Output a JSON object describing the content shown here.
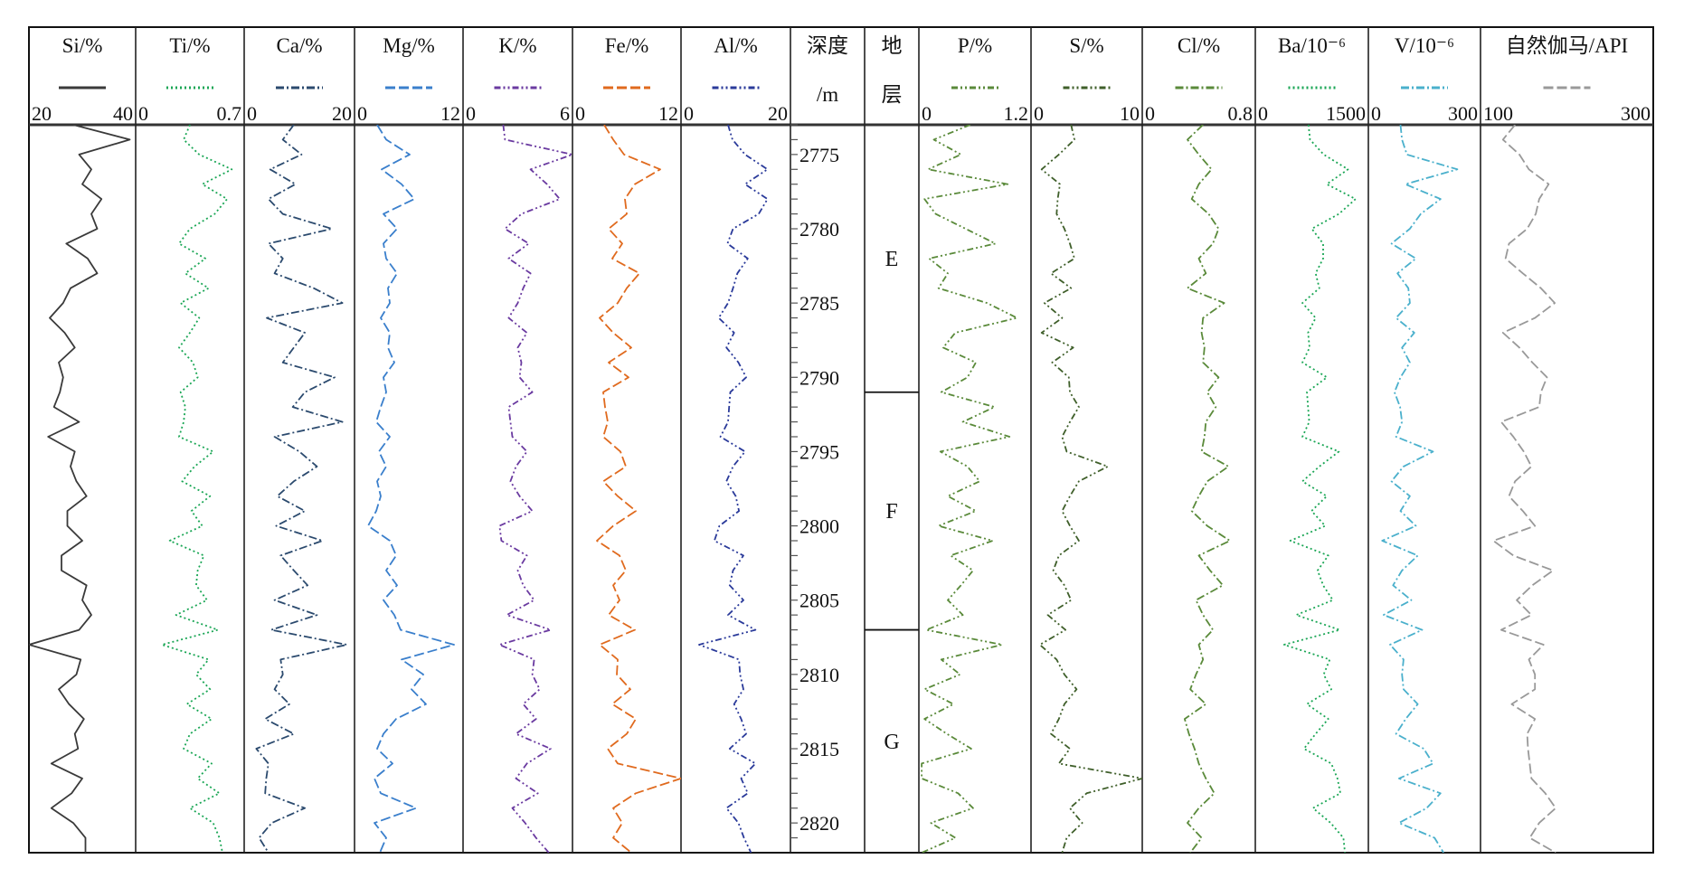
{
  "chart_data": {
    "type": "line",
    "orientation": "vertical-well-log",
    "depth_axis": {
      "title_line1": "深度",
      "title_line2": "/m",
      "range": [
        2773,
        2822
      ],
      "tick_labels": [
        "2775",
        "2780",
        "2785",
        "2790",
        "2795",
        "2800",
        "2805",
        "2810",
        "2815",
        "2820"
      ],
      "tick_values": [
        2775,
        2780,
        2785,
        2790,
        2795,
        2800,
        2805,
        2810,
        2815,
        2820
      ],
      "minor_tick_step": 1
    },
    "strata": {
      "title_line1": "地",
      "title_line2": "层",
      "units": [
        {
          "label": "E",
          "top": 2773,
          "bottom": 2791
        },
        {
          "label": "F",
          "top": 2791,
          "bottom": 2807
        },
        {
          "label": "G",
          "top": 2807,
          "bottom": 2822
        }
      ]
    },
    "depth": [
      2773,
      2774,
      2775,
      2776,
      2777,
      2778,
      2779,
      2780,
      2781,
      2782,
      2783,
      2784,
      2785,
      2786,
      2787,
      2788,
      2789,
      2790,
      2791,
      2792,
      2793,
      2794,
      2795,
      2796,
      2797,
      2798,
      2799,
      2800,
      2801,
      2802,
      2803,
      2804,
      2805,
      2806,
      2807,
      2808,
      2809,
      2810,
      2811,
      2812,
      2813,
      2814,
      2815,
      2816,
      2817,
      2818,
      2819,
      2820,
      2821,
      2822
    ],
    "tracks": [
      {
        "name": "Si/%",
        "min": 20,
        "max": 40,
        "min_label": "20",
        "max_label": "40",
        "color": "#3a3a3a",
        "style": "solid",
        "values": [
          28.3,
          38.9,
          29.4,
          31.7,
          30,
          33.6,
          31.7,
          32.8,
          27,
          31,
          32.8,
          27.8,
          26.4,
          23.9,
          26.7,
          28.6,
          25.6,
          26.4,
          25.8,
          24.7,
          29.4,
          23.6,
          28.6,
          27.8,
          28.9,
          30.8,
          27.2,
          27.2,
          30,
          26.1,
          26.1,
          30.8,
          30,
          31.7,
          29.4,
          20,
          29.7,
          28.9,
          25.6,
          27.5,
          30.3,
          28.6,
          29.2,
          24.2,
          30,
          28,
          24.2,
          28.3,
          30.6,
          30.6
        ]
      },
      {
        "name": "Ti/%",
        "min": 0,
        "max": 0.7,
        "min_label": "0",
        "max_label": "0.7",
        "color": "#1aa655",
        "style": "dotted",
        "values": [
          0.35,
          0.31,
          0.41,
          0.62,
          0.43,
          0.59,
          0.51,
          0.35,
          0.28,
          0.45,
          0.32,
          0.47,
          0.29,
          0.41,
          0.35,
          0.28,
          0.37,
          0.4,
          0.29,
          0.32,
          0.31,
          0.28,
          0.5,
          0.38,
          0.3,
          0.48,
          0.36,
          0.43,
          0.22,
          0.44,
          0.4,
          0.39,
          0.46,
          0.26,
          0.53,
          0.17,
          0.47,
          0.39,
          0.48,
          0.33,
          0.49,
          0.35,
          0.31,
          0.49,
          0.4,
          0.54,
          0.35,
          0.5,
          0.54,
          0.56
        ]
      },
      {
        "name": "Ca/%",
        "min": 0,
        "max": 20,
        "min_label": "0",
        "max_label": "20",
        "color": "#2b4a6e",
        "style": "dashdot",
        "values": [
          9,
          7,
          10.4,
          4.7,
          9.3,
          4.4,
          7,
          15.9,
          4.4,
          7,
          5.5,
          12.6,
          17.8,
          4.1,
          11,
          9,
          7,
          16.4,
          11,
          8.8,
          17.8,
          5.5,
          10,
          13.2,
          9,
          6,
          11,
          5.8,
          14.2,
          6.6,
          9,
          11.5,
          5.5,
          13.2,
          4.9,
          18.6,
          6.6,
          7,
          5.5,
          8.2,
          3.8,
          9,
          2.2,
          4.4,
          4,
          3.8,
          11,
          5,
          2.7,
          4.4
        ]
      },
      {
        "name": "Mg/%",
        "min": 0,
        "max": 12,
        "min_label": "0",
        "max_label": "12",
        "color": "#3a7fcc",
        "style": "dashed",
        "values": [
          2.5,
          3.5,
          6.1,
          3,
          5.2,
          6.6,
          3.2,
          4.7,
          3.2,
          3.5,
          4.7,
          3.7,
          3.9,
          2.9,
          3.9,
          3.7,
          4.4,
          3.2,
          3.5,
          2.9,
          2.4,
          3.9,
          2.7,
          3.5,
          2.5,
          2.9,
          2.4,
          1.5,
          3.9,
          4.6,
          3.5,
          4.7,
          3.2,
          4.4,
          5.1,
          11,
          5.2,
          7.6,
          6.3,
          7.9,
          4.6,
          3.2,
          2.5,
          4.2,
          2.2,
          2.9,
          6.8,
          2.2,
          3.5,
          2.8
        ]
      },
      {
        "name": "K/%",
        "min": 0,
        "max": 6,
        "min_label": "0",
        "max_label": "6",
        "color": "#6a3aa0",
        "style": "dashdotdot",
        "values": [
          2.2,
          2.3,
          6,
          3.7,
          4.6,
          5.3,
          3.2,
          2.3,
          3.6,
          2.5,
          3.7,
          3.3,
          3,
          2.5,
          3.5,
          3,
          3.2,
          3.1,
          3.8,
          2.5,
          2.6,
          2.7,
          3.5,
          2.9,
          2.6,
          3.1,
          3.8,
          2,
          2.1,
          3.5,
          3,
          3.3,
          3.9,
          2.4,
          4.8,
          2,
          3.9,
          3.8,
          4.2,
          3.3,
          4,
          2.9,
          4.8,
          3.5,
          2.9,
          4.1,
          2.7,
          3.4,
          4,
          4.7
        ]
      },
      {
        "name": "Fe/%",
        "min": 0,
        "max": 12,
        "min_label": "0",
        "max_label": "12",
        "color": "#e06a1e",
        "style": "dashed",
        "values": [
          3.5,
          4.5,
          5.7,
          9.7,
          6.9,
          5.8,
          6,
          4,
          5.5,
          4.4,
          7.4,
          6,
          5,
          3,
          4.5,
          6.5,
          4,
          6.2,
          3.4,
          3.6,
          3.9,
          3.4,
          5.3,
          5.9,
          3.4,
          5,
          7,
          4.5,
          2.7,
          5.2,
          5.9,
          4.5,
          5.2,
          4,
          6.9,
          3,
          5,
          4.9,
          6.4,
          4.4,
          7,
          6,
          3.9,
          5,
          12,
          7,
          4.5,
          5.5,
          4.5,
          6.5
        ]
      },
      {
        "name": "Al/%",
        "min": 0,
        "max": 20,
        "min_label": "0",
        "max_label": "20",
        "color": "#2a3a9a",
        "style": "dashdotdot",
        "values": [
          8.6,
          9.4,
          11.7,
          15.8,
          11.7,
          15.8,
          14.2,
          9.5,
          8.5,
          12.2,
          10.3,
          9.5,
          8.6,
          6.9,
          9.7,
          8.3,
          10.5,
          11.9,
          9,
          8.8,
          8.6,
          7.2,
          11.7,
          9.5,
          8.3,
          10,
          10.6,
          7,
          6.1,
          11.4,
          9.5,
          8.9,
          11.4,
          8.6,
          13.6,
          3.3,
          10.6,
          10.8,
          11.4,
          9.7,
          11,
          11.9,
          8.9,
          13.6,
          11,
          12.2,
          8.3,
          10.5,
          11.5,
          12.8
        ]
      },
      {
        "name": "P/%",
        "min": 0,
        "max": 1.2,
        "min_label": "0",
        "max_label": "1.2",
        "color": "#5a8a3a",
        "style": "dashdotdot",
        "values": [
          0.55,
          0.16,
          0.45,
          0.1,
          0.95,
          0.06,
          0.18,
          0.5,
          0.82,
          0.11,
          0.31,
          0.21,
          0.73,
          1.05,
          0.39,
          0.26,
          0.61,
          0.52,
          0.24,
          0.81,
          0.47,
          0.97,
          0.23,
          0.52,
          0.65,
          0.31,
          0.61,
          0.21,
          0.79,
          0.34,
          0.58,
          0.45,
          0.31,
          0.47,
          0.08,
          0.89,
          0.24,
          0.44,
          0.06,
          0.37,
          0.06,
          0.3,
          0.56,
          0.03,
          0.03,
          0.42,
          0.58,
          0.13,
          0.39,
          0.03
        ]
      },
      {
        "name": "S/%",
        "min": 0,
        "max": 10,
        "min_label": "0",
        "max_label": "10",
        "color": "#3f5f2a",
        "style": "dashdotdot",
        "values": [
          3.6,
          3.9,
          2.5,
          0.95,
          2.6,
          2.4,
          2.3,
          3,
          3.5,
          3.9,
          1.8,
          3.6,
          1.2,
          2.8,
          0.95,
          3.8,
          1.9,
          3.4,
          3.5,
          4.3,
          3.5,
          2.8,
          3.2,
          6.9,
          4.3,
          3.5,
          2.8,
          3.5,
          4.3,
          2.5,
          2,
          3,
          3.6,
          1.5,
          3.1,
          0.8,
          2.3,
          3,
          4.1,
          3,
          2.5,
          1.8,
          3.5,
          2.5,
          10,
          5,
          3.5,
          4.6,
          3.2,
          2.8
        ]
      },
      {
        "name": "Cl/%",
        "min": 0,
        "max": 0.8,
        "min_label": "0",
        "max_label": "0.8",
        "color": "#5a8a3a",
        "style": "dashdot",
        "values": [
          0.43,
          0.32,
          0.4,
          0.49,
          0.4,
          0.35,
          0.47,
          0.54,
          0.5,
          0.4,
          0.45,
          0.32,
          0.58,
          0.43,
          0.42,
          0.44,
          0.43,
          0.54,
          0.46,
          0.52,
          0.45,
          0.44,
          0.42,
          0.61,
          0.46,
          0.4,
          0.35,
          0.46,
          0.62,
          0.4,
          0.48,
          0.57,
          0.38,
          0.43,
          0.5,
          0.4,
          0.43,
          0.38,
          0.34,
          0.45,
          0.3,
          0.33,
          0.37,
          0.4,
          0.45,
          0.51,
          0.4,
          0.32,
          0.42,
          0.34
        ]
      },
      {
        "name": "Ba/10⁻⁶",
        "min": 0,
        "max": 1500,
        "min_label": "0",
        "max_label": "1500",
        "color": "#1aa655",
        "style": "dotted",
        "values": [
          706,
          726,
          907,
          1230,
          948,
          1331,
          1109,
          750,
          900,
          900,
          800,
          850,
          625,
          800,
          700,
          720,
          625,
          950,
          685,
          700,
          715,
          625,
          1109,
          850,
          625,
          948,
          746,
          927,
          464,
          968,
          827,
          900,
          1028,
          544,
          1120,
          383,
          988,
          907,
          1008,
          685,
          968,
          800,
          645,
          1008,
          1089,
          1129,
          766,
          1000,
          1169,
          1189
        ]
      },
      {
        "name": "V/10⁻⁶",
        "min": 0,
        "max": 300,
        "min_label": "0",
        "max_label": "300",
        "color": "#4ab0cc",
        "style": "dashdot",
        "values": [
          86,
          90,
          103,
          238,
          99,
          193,
          140,
          111,
          62,
          127,
          78,
          107,
          111,
          74,
          123,
          90,
          111,
          86,
          70,
          85,
          90,
          74,
          173,
          94,
          62,
          111,
          86,
          127,
          37,
          132,
          90,
          66,
          115,
          41,
          144,
          58,
          94,
          90,
          94,
          132,
          100,
          74,
          148,
          173,
          82,
          193,
          156,
          82,
          177,
          201
        ]
      },
      {
        "name": "自然伽马/API",
        "min": 100,
        "max": 300,
        "min_label": "100",
        "max_label": "300",
        "color": "#999999",
        "style": "dashed",
        "values": [
          140,
          126,
          145,
          156,
          179,
          168,
          164,
          154,
          133,
          129,
          149,
          170,
          186,
          163,
          126,
          145,
          160,
          177,
          170,
          168,
          124,
          138,
          150,
          159,
          140,
          133,
          149,
          163,
          115,
          138,
          184,
          160,
          142,
          159,
          124,
          173,
          156,
          163,
          163,
          136,
          163,
          154,
          155,
          157,
          159,
          175,
          187,
          168,
          157,
          187
        ]
      }
    ]
  }
}
